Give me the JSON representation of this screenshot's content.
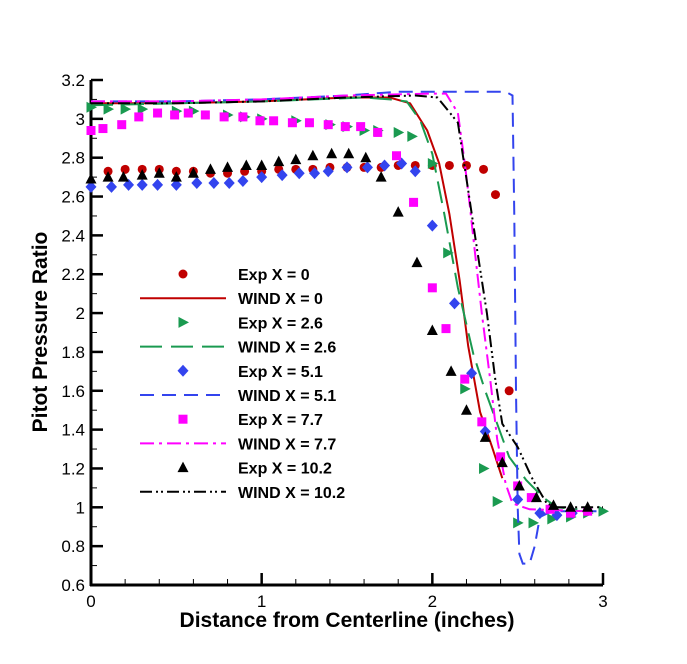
{
  "chart_data": {
    "type": "line",
    "title": "",
    "xlabel": "Distance from Centerline (inches)",
    "ylabel": "Pitot Pressure Ratio",
    "xlim": [
      0,
      3
    ],
    "ylim": [
      0.6,
      3.2
    ],
    "x_ticks": [
      "0",
      "1",
      "2",
      "3"
    ],
    "y_ticks": [
      "0.6",
      "0.8",
      "1",
      "1.2",
      "1.4",
      "1.6",
      "1.8",
      "2",
      "2.2",
      "2.4",
      "2.6",
      "2.8",
      "3",
      "3.2"
    ],
    "grid": false,
    "legend_placement": "center-left",
    "series": [
      {
        "name": "Exp X = 0",
        "kind": "marker",
        "marker": "circle",
        "color": "#c00000",
        "x": [
          0.1,
          0.2,
          0.3,
          0.4,
          0.5,
          0.6,
          0.7,
          0.8,
          0.9,
          1.0,
          1.1,
          1.2,
          1.3,
          1.4,
          1.5,
          1.6,
          1.7,
          1.8,
          1.9,
          2.0,
          2.1,
          2.2,
          2.3,
          2.37,
          2.45
        ],
        "y": [
          2.73,
          2.74,
          2.74,
          2.74,
          2.73,
          2.73,
          2.72,
          2.72,
          2.73,
          2.73,
          2.74,
          2.74,
          2.74,
          2.75,
          2.75,
          2.75,
          2.75,
          2.76,
          2.76,
          2.76,
          2.76,
          2.76,
          2.74,
          2.61,
          1.6
        ]
      },
      {
        "name": "WIND X = 0",
        "kind": "line",
        "dash": "solid",
        "color": "#c00000",
        "x": [
          0,
          0.5,
          1.0,
          1.5,
          1.75,
          1.87,
          1.97,
          2.04,
          2.1,
          2.16,
          2.21,
          2.28,
          2.35,
          2.41
        ],
        "y": [
          3.08,
          3.08,
          3.09,
          3.11,
          3.11,
          3.08,
          2.94,
          2.77,
          2.51,
          2.17,
          1.83,
          1.49,
          1.31,
          1.15
        ]
      },
      {
        "name": "Exp X = 2.6",
        "kind": "marker",
        "marker": "triangle-right",
        "color": "#1a9a50",
        "x": [
          0,
          0.1,
          0.2,
          0.3,
          0.5,
          0.6,
          0.8,
          0.9,
          1.0,
          1.2,
          1.4,
          1.5,
          1.6,
          1.68,
          1.8,
          1.88,
          2.0,
          2.09,
          2.19,
          2.3,
          2.38,
          2.5,
          2.59,
          2.7,
          2.81,
          2.91,
          3.0
        ],
        "y": [
          3.06,
          3.05,
          3.05,
          3.05,
          3.04,
          3.04,
          3.02,
          3.01,
          3.0,
          2.99,
          2.97,
          2.96,
          2.94,
          2.94,
          2.93,
          2.91,
          2.77,
          2.31,
          1.61,
          1.2,
          1.03,
          0.92,
          0.92,
          0.94,
          0.95,
          0.97,
          0.98
        ]
      },
      {
        "name": "WIND X = 2.6",
        "kind": "line",
        "dash": "long-dash",
        "color": "#1a9a50",
        "x": [
          0,
          0.5,
          1.0,
          1.6,
          1.75,
          1.85,
          1.93,
          2.0,
          2.07,
          2.15,
          2.24,
          2.31,
          2.38,
          2.45,
          2.55,
          2.65,
          2.73,
          2.85
        ],
        "y": [
          3.07,
          3.08,
          3.09,
          3.11,
          3.1,
          3.09,
          2.99,
          2.82,
          2.51,
          2.13,
          1.79,
          1.6,
          1.43,
          1.26,
          1.14,
          1.05,
          1.0,
          0.99
        ]
      },
      {
        "name": "Exp X = 5.1",
        "kind": "marker",
        "marker": "diamond",
        "color": "#3344ee",
        "x": [
          0,
          0.12,
          0.22,
          0.3,
          0.39,
          0.5,
          0.62,
          0.72,
          0.81,
          0.89,
          1.0,
          1.12,
          1.22,
          1.31,
          1.39,
          1.5,
          1.62,
          1.72,
          1.82,
          1.9,
          2.0,
          2.13,
          2.23,
          2.31,
          2.5,
          2.63,
          2.73,
          2.82
        ],
        "y": [
          2.65,
          2.65,
          2.66,
          2.66,
          2.66,
          2.66,
          2.67,
          2.67,
          2.67,
          2.68,
          2.7,
          2.71,
          2.72,
          2.72,
          2.73,
          2.75,
          2.75,
          2.76,
          2.77,
          2.73,
          2.45,
          2.05,
          1.69,
          1.39,
          1.04,
          0.97,
          0.96,
          0.97
        ]
      },
      {
        "name": "WIND X = 5.1",
        "kind": "line",
        "dash": "dash",
        "color": "#3344ee",
        "x": [
          0,
          0.5,
          1.0,
          1.5,
          1.8,
          2.2,
          2.43,
          2.47,
          2.48,
          2.49,
          2.5,
          2.51,
          2.53,
          2.57,
          2.6,
          2.63,
          2.7,
          3.0
        ],
        "y": [
          3.09,
          3.09,
          3.1,
          3.12,
          3.14,
          3.14,
          3.14,
          3.12,
          2.5,
          1.6,
          1.0,
          0.76,
          0.71,
          0.71,
          0.8,
          0.95,
          0.98,
          0.98
        ]
      },
      {
        "name": "Exp X = 7.7",
        "kind": "marker",
        "marker": "square",
        "color": "#ff00ff",
        "x": [
          0,
          0.07,
          0.18,
          0.28,
          0.39,
          0.49,
          0.57,
          0.67,
          0.78,
          0.89,
          0.99,
          1.07,
          1.18,
          1.28,
          1.39,
          1.49,
          1.58,
          1.68,
          1.79,
          1.89,
          2.0,
          2.08,
          2.19,
          2.29,
          2.4,
          2.5,
          2.58,
          2.69,
          2.81,
          2.91
        ],
        "y": [
          2.94,
          2.95,
          2.97,
          3.01,
          3.03,
          3.02,
          3.03,
          3.02,
          3.01,
          3.01,
          2.99,
          2.99,
          2.98,
          2.98,
          2.97,
          2.96,
          2.96,
          2.93,
          2.81,
          2.57,
          2.13,
          1.92,
          1.66,
          1.44,
          1.26,
          1.11,
          1.05,
          0.99,
          0.97,
          0.98
        ]
      },
      {
        "name": "WIND X = 7.7",
        "kind": "line",
        "dash": "dash-dot",
        "color": "#ff00ff",
        "x": [
          0,
          0.5,
          1.0,
          1.5,
          2.0,
          2.08,
          2.15,
          2.19,
          2.22,
          2.25,
          2.29,
          2.34,
          2.38,
          2.43,
          2.47,
          2.57,
          2.9
        ],
        "y": [
          3.09,
          3.09,
          3.1,
          3.12,
          3.13,
          3.13,
          3.03,
          2.77,
          2.55,
          2.31,
          2.0,
          1.65,
          1.35,
          1.12,
          1.02,
          0.99,
          0.98
        ]
      },
      {
        "name": "Exp X = 10.2",
        "kind": "marker",
        "marker": "triangle-up",
        "color": "#000000",
        "x": [
          0,
          0.1,
          0.19,
          0.3,
          0.4,
          0.5,
          0.6,
          0.7,
          0.8,
          0.91,
          1.0,
          1.1,
          1.2,
          1.3,
          1.41,
          1.51,
          1.61,
          1.7,
          1.8,
          1.91,
          2.0,
          2.11,
          2.2,
          2.31,
          2.41,
          2.51,
          2.61,
          2.71,
          2.81,
          2.91
        ],
        "y": [
          2.69,
          2.7,
          2.7,
          2.71,
          2.72,
          2.7,
          2.72,
          2.74,
          2.75,
          2.76,
          2.76,
          2.78,
          2.79,
          2.81,
          2.82,
          2.82,
          2.8,
          2.7,
          2.52,
          2.26,
          1.91,
          1.7,
          1.5,
          1.36,
          1.23,
          1.11,
          1.05,
          1.01,
          1.0,
          1.0
        ]
      },
      {
        "name": "WIND X = 10.2",
        "kind": "line",
        "dash": "dash-dot-dot",
        "color": "#000000",
        "x": [
          0,
          0.5,
          1.0,
          1.5,
          1.9,
          2.03,
          2.15,
          2.2,
          2.26,
          2.32,
          2.37,
          2.41,
          2.5,
          2.59,
          2.67,
          2.73,
          3.0
        ],
        "y": [
          3.08,
          3.08,
          3.09,
          3.11,
          3.12,
          3.11,
          2.98,
          2.69,
          2.34,
          2.0,
          1.65,
          1.43,
          1.31,
          1.14,
          1.02,
          1.0,
          1.0
        ]
      }
    ]
  }
}
